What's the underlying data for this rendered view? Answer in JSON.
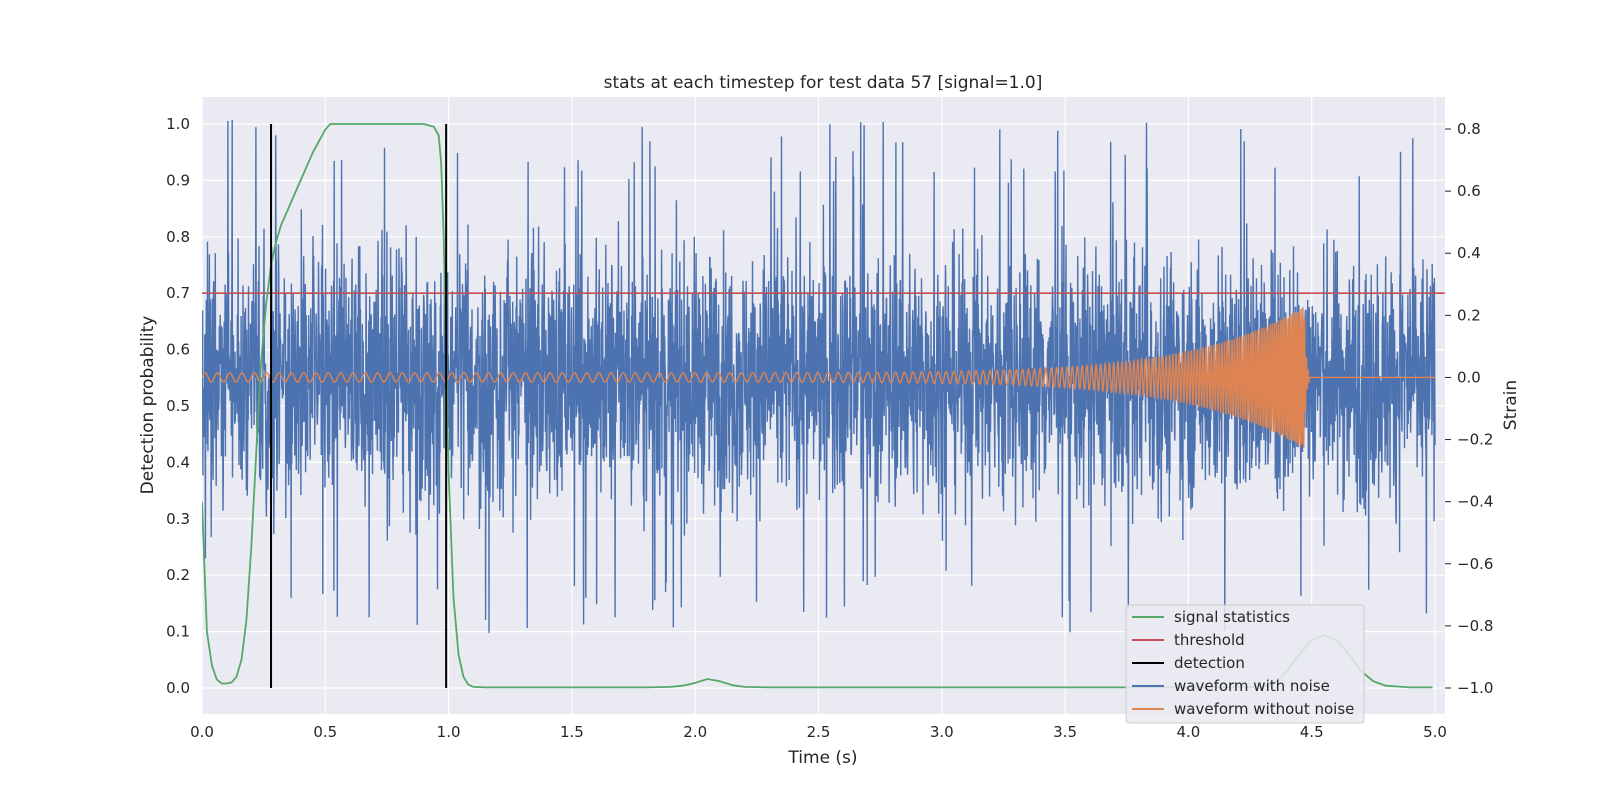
{
  "chart_data": {
    "type": "line",
    "title": "stats at each timestep for test data 57 [signal=1.0]",
    "xlabel": "Time (s)",
    "ylabel_left": "Detection probability",
    "ylabel_right": "Strain",
    "xlim": [
      0.0,
      5.0
    ],
    "ylim_left": [
      0.0,
      1.0
    ],
    "ylim_right": [
      -1.0,
      0.8
    ],
    "grid": true,
    "legend_placement": "lower-right",
    "x_ticks": [
      "0.0",
      "0.5",
      "1.0",
      "1.5",
      "2.0",
      "2.5",
      "3.0",
      "3.5",
      "4.0",
      "4.5",
      "5.0"
    ],
    "y_left_ticks": [
      "0.0",
      "0.1",
      "0.2",
      "0.3",
      "0.4",
      "0.5",
      "0.6",
      "0.7",
      "0.8",
      "0.9",
      "1.0"
    ],
    "y_right_ticks": [
      "−1.0",
      "−0.8",
      "−0.6",
      "−0.4",
      "−0.2",
      "0.0",
      "0.2",
      "0.4",
      "0.6",
      "0.8"
    ],
    "colors": {
      "signal_statistics": "#55a868",
      "threshold": "#c44e52",
      "detection": "#000000",
      "waveform_with_noise": "#4c72b0",
      "waveform_without_noise": "#dd8452",
      "plot_background": "#eaeaf2",
      "grid": "#ffffff"
    },
    "series": [
      {
        "name": "signal statistics",
        "axis": "left",
        "x": [
          0.0,
          0.02,
          0.04,
          0.06,
          0.08,
          0.1,
          0.12,
          0.14,
          0.16,
          0.18,
          0.2,
          0.22,
          0.24,
          0.26,
          0.28,
          0.3,
          0.32,
          0.35,
          0.4,
          0.45,
          0.5,
          0.52,
          0.55,
          0.6,
          0.7,
          0.8,
          0.9,
          0.94,
          0.96,
          0.97,
          0.98,
          0.99,
          1.0,
          1.02,
          1.04,
          1.06,
          1.08,
          1.1,
          1.15,
          1.2,
          1.5,
          1.8,
          1.9,
          1.95,
          2.0,
          2.05,
          2.1,
          2.15,
          2.2,
          2.3,
          2.5,
          3.0,
          3.5,
          4.0,
          4.2,
          4.3,
          4.35,
          4.4,
          4.45,
          4.5,
          4.55,
          4.6,
          4.65,
          4.7,
          4.75,
          4.8,
          4.9,
          4.99
        ],
        "values": [
          0.33,
          0.1,
          0.04,
          0.015,
          0.008,
          0.008,
          0.01,
          0.02,
          0.05,
          0.12,
          0.25,
          0.42,
          0.58,
          0.68,
          0.75,
          0.79,
          0.82,
          0.85,
          0.9,
          0.95,
          0.99,
          1.0,
          1.0,
          1.0,
          1.0,
          1.0,
          1.0,
          0.995,
          0.98,
          0.93,
          0.8,
          0.6,
          0.38,
          0.16,
          0.06,
          0.02,
          0.006,
          0.002,
          0.001,
          0.001,
          0.001,
          0.001,
          0.002,
          0.004,
          0.009,
          0.016,
          0.012,
          0.005,
          0.002,
          0.001,
          0.001,
          0.001,
          0.001,
          0.001,
          0.001,
          0.002,
          0.01,
          0.03,
          0.06,
          0.085,
          0.093,
          0.085,
          0.06,
          0.03,
          0.012,
          0.004,
          0.001,
          0.001
        ]
      },
      {
        "name": "threshold",
        "axis": "left",
        "x": [
          0.0,
          5.04
        ],
        "values": [
          0.7,
          0.7
        ]
      },
      {
        "name": "detection",
        "axis": "left",
        "type": "vlines",
        "x": [
          0.28,
          0.99
        ],
        "ymin": 0.0,
        "ymax": 1.0
      },
      {
        "name": "waveform with noise",
        "axis": "right",
        "noise_amplitude": 0.83,
        "x_range": [
          0.0,
          5.0
        ],
        "samples": 4000
      },
      {
        "name": "waveform without noise",
        "axis": "right",
        "x_range": [
          0.0,
          5.0
        ],
        "amplitude_at_start": 0.015,
        "peak_amplitude": 0.23,
        "merger_time": 4.47,
        "frequency_start_hz": 20,
        "frequency_end_hz": 140
      }
    ]
  }
}
